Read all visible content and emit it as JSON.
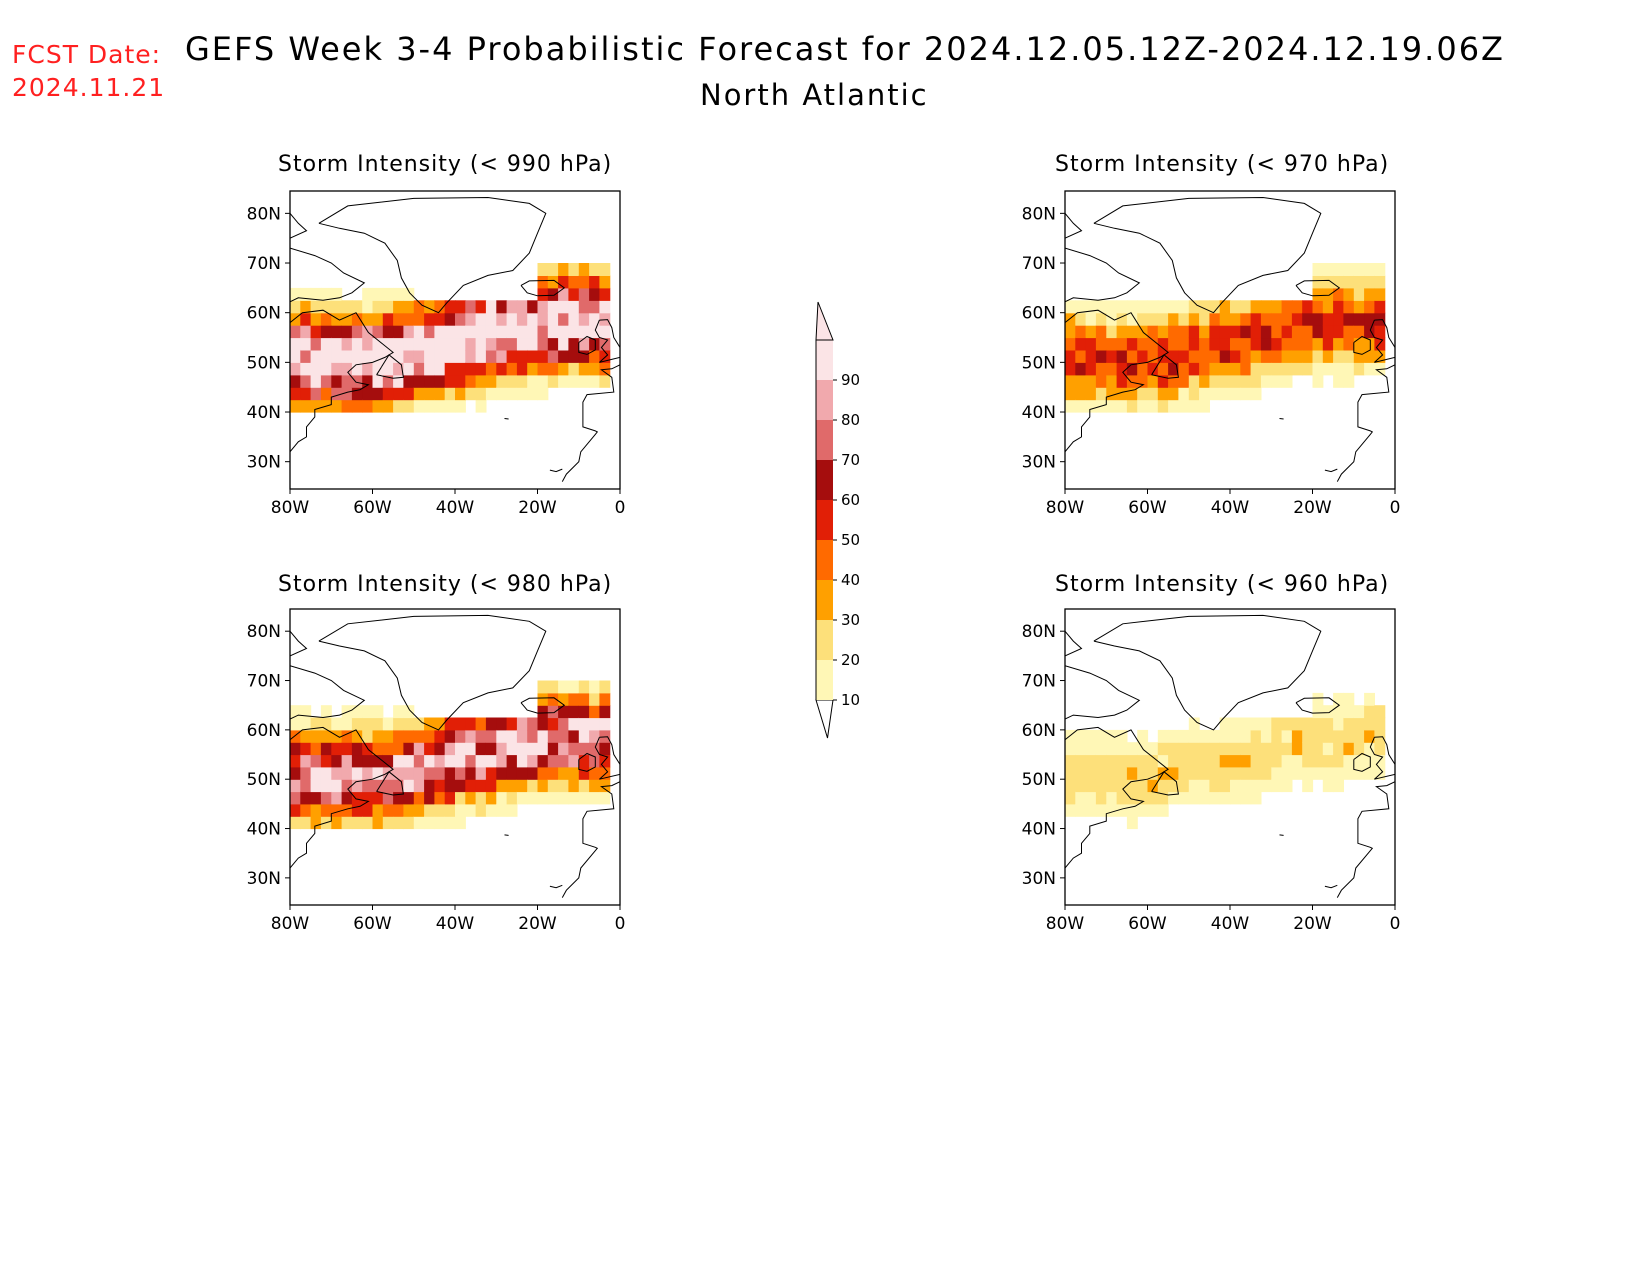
{
  "header": {
    "fcst_label": "FCST Date:",
    "fcst_date": "2024.11.21",
    "title": "GEFS Week 3-4 Probabilistic Forecast for 2024.12.05.12Z-2024.12.19.06Z",
    "subtitle": "North Atlantic"
  },
  "axes": {
    "lat_labels": [
      "80N",
      "70N",
      "60N",
      "50N",
      "40N",
      "30N"
    ],
    "lon_labels": [
      "80W",
      "60W",
      "40W",
      "20W",
      "0"
    ]
  },
  "panels": [
    {
      "id": "p990",
      "title": "Storm Intensity (< 990 hPa)",
      "level": "high"
    },
    {
      "id": "p970",
      "title": "Storm Intensity (< 970 hPa)",
      "level": "low"
    },
    {
      "id": "p980",
      "title": "Storm Intensity (< 980 hPa)",
      "level": "mid"
    },
    {
      "id": "p960",
      "title": "Storm Intensity (< 960 hPa)",
      "level": "verylow"
    }
  ],
  "colorbar": {
    "labels": [
      "90",
      "80",
      "70",
      "60",
      "50",
      "40",
      "30",
      "20",
      "10"
    ],
    "colors": [
      "#fbe4e6",
      "#f1a9ad",
      "#e06a6a",
      "#a50d0d",
      "#e11f06",
      "#ff6a00",
      "#ffa000",
      "#fde07a",
      "#fff7b6"
    ]
  }
}
